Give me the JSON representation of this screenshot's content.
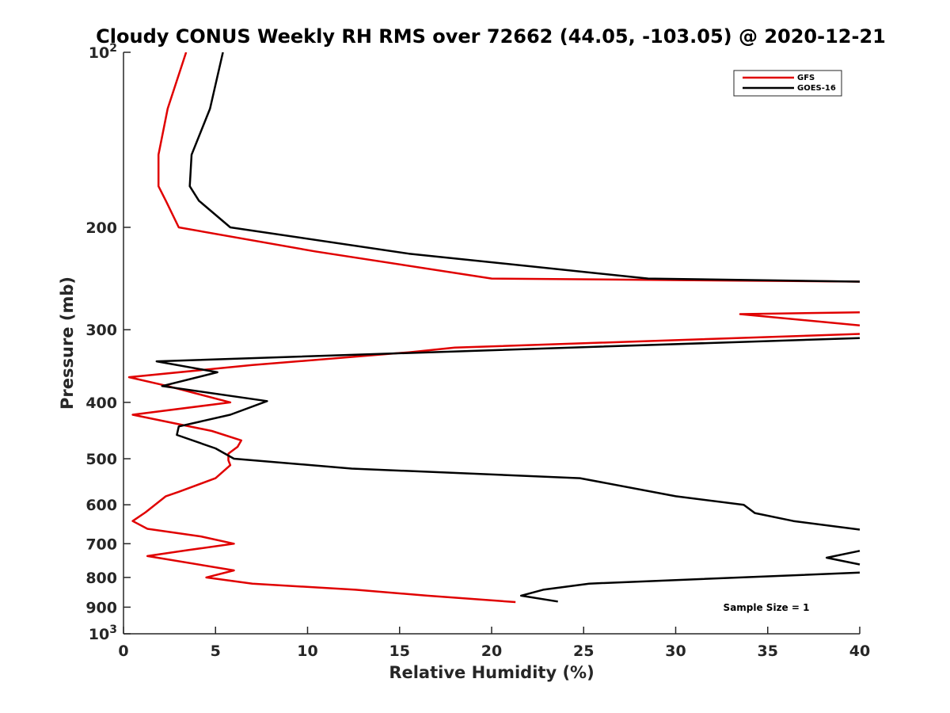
{
  "chart_data": {
    "type": "line",
    "title": "Cloudy CONUS Weekly RH RMS over 72662 (44.05, -103.05) @ 2020-12-21",
    "xlabel": "Relative Humidity (%)",
    "ylabel": "Pressure (mb)",
    "xlim": [
      0,
      40
    ],
    "ylim": [
      100,
      1000
    ],
    "yscale": "log",
    "yreversed": true,
    "x_ticks": [
      0,
      5,
      10,
      15,
      20,
      25,
      30,
      35,
      40
    ],
    "x_tick_labels": [
      "0",
      "5",
      "10",
      "15",
      "20",
      "25",
      "30",
      "35",
      "40"
    ],
    "y_ticks": [
      100,
      200,
      300,
      400,
      500,
      600,
      700,
      800,
      900,
      1000
    ],
    "y_tick_labels": [
      {
        "base": "10",
        "exp": "2"
      },
      {
        "base": "200",
        "exp": ""
      },
      {
        "base": "300",
        "exp": ""
      },
      {
        "base": "400",
        "exp": ""
      },
      {
        "base": "500",
        "exp": ""
      },
      {
        "base": "600",
        "exp": ""
      },
      {
        "base": "700",
        "exp": ""
      },
      {
        "base": "800",
        "exp": ""
      },
      {
        "base": "900",
        "exp": ""
      },
      {
        "base": "10",
        "exp": "3"
      }
    ],
    "legend_position": "top-right",
    "annotation": "Sample Size = 1",
    "series": [
      {
        "name": "GFS",
        "color": "#e00000",
        "points": [
          [
            3.4,
            100
          ],
          [
            2.4,
            125
          ],
          [
            1.9,
            150
          ],
          [
            1.9,
            170
          ],
          [
            2.3,
            180
          ],
          [
            3.0,
            200
          ],
          [
            10.4,
            220
          ],
          [
            20.0,
            245
          ],
          [
            40,
            248
          ],
          [
            null,
            null
          ],
          [
            40,
            280
          ],
          [
            33.5,
            282
          ],
          [
            40,
            295
          ],
          [
            null,
            null
          ],
          [
            40,
            305
          ],
          [
            18.0,
            322
          ],
          [
            15.5,
            328
          ],
          [
            7.0,
            345
          ],
          [
            0.3,
            362
          ],
          [
            2.4,
            375
          ],
          [
            5.8,
            400
          ],
          [
            0.5,
            420
          ],
          [
            4.8,
            448
          ],
          [
            6.4,
            465
          ],
          [
            6.2,
            477
          ],
          [
            5.7,
            490
          ],
          [
            5.7,
            503
          ],
          [
            5.8,
            513
          ],
          [
            5.0,
            540
          ],
          [
            3.0,
            570
          ],
          [
            2.3,
            580
          ],
          [
            1.2,
            618
          ],
          [
            0.5,
            640
          ],
          [
            1.3,
            660
          ],
          [
            4.2,
            680
          ],
          [
            6.0,
            700
          ],
          [
            3.5,
            718
          ],
          [
            1.3,
            735
          ],
          [
            6.0,
            778
          ],
          [
            4.5,
            800
          ],
          [
            7.0,
            820
          ],
          [
            12.6,
            840
          ],
          [
            16.5,
            860
          ],
          [
            21.3,
            882
          ]
        ]
      },
      {
        "name": "GOES-16",
        "color": "#000000",
        "points": [
          [
            5.4,
            100
          ],
          [
            4.7,
            125
          ],
          [
            3.7,
            150
          ],
          [
            3.6,
            170
          ],
          [
            4.1,
            180
          ],
          [
            5.8,
            200
          ],
          [
            15.5,
            222
          ],
          [
            28.5,
            245
          ],
          [
            40,
            248
          ],
          [
            null,
            null
          ],
          [
            40,
            310
          ],
          [
            1.8,
            340
          ],
          [
            5.1,
            355
          ],
          [
            2.1,
            375
          ],
          [
            7.8,
            398
          ],
          [
            5.8,
            420
          ],
          [
            3.0,
            440
          ],
          [
            2.9,
            455
          ],
          [
            5.0,
            480
          ],
          [
            6.0,
            500
          ],
          [
            12.4,
            520
          ],
          [
            24.8,
            540
          ],
          [
            30.0,
            580
          ],
          [
            33.7,
            600
          ],
          [
            34.3,
            620
          ],
          [
            36.4,
            640
          ],
          [
            40,
            662
          ],
          [
            null,
            null
          ],
          [
            40,
            720
          ],
          [
            38.2,
            740
          ],
          [
            40,
            760
          ],
          [
            null,
            null
          ],
          [
            40,
            785
          ],
          [
            25.3,
            820
          ],
          [
            22.8,
            840
          ],
          [
            21.6,
            860
          ],
          [
            23.6,
            880
          ]
        ]
      }
    ]
  }
}
